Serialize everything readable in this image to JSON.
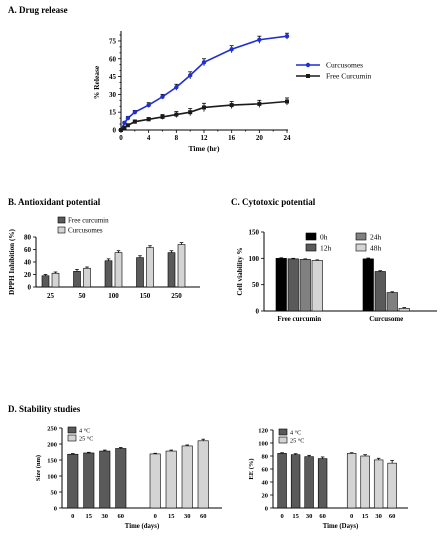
{
  "panels": {
    "a_title": "A. Drug release",
    "b_title": "B. Antioxidant potential",
    "c_title": "C. Cytotoxic potential",
    "d_title": "D. Stability studies"
  },
  "colors": {
    "curcusomes_line": "#1f2fd0",
    "free_line": "#1a1a1a",
    "bar_dark": "#5a5a5a",
    "bar_light": "#d4d4d4",
    "bar_black": "#000000",
    "bar_mid": "#808080"
  },
  "chart_data": [
    {
      "id": "A",
      "type": "line",
      "xlabel": "Time (hr)",
      "ylabel": "% Release",
      "xlim": [
        0,
        24
      ],
      "ylim": [
        0,
        80
      ],
      "xticks": [
        "0",
        "2",
        "4",
        "6",
        "8",
        "10",
        "12",
        "14",
        "16",
        "18",
        "20",
        "22",
        "24"
      ],
      "xticks_val": [
        0,
        2,
        4,
        6,
        8,
        10,
        12,
        14,
        16,
        18,
        20,
        22,
        24
      ],
      "xticks_show": [
        0,
        4,
        8,
        12,
        16,
        20,
        24
      ],
      "yticks": [
        "0",
        "5",
        "10",
        "15",
        "20",
        "25",
        "30",
        "35",
        "40",
        "45",
        "50",
        "55",
        "60",
        "65",
        "70",
        "75",
        "80"
      ],
      "yticks_val": [
        0,
        5,
        10,
        15,
        20,
        25,
        30,
        35,
        40,
        45,
        50,
        55,
        60,
        65,
        70,
        75,
        80
      ],
      "yticks_show": [
        0,
        15,
        30,
        45,
        60,
        75
      ],
      "series": [
        {
          "name": "Curcusomes",
          "x": [
            0,
            0.5,
            1,
            2,
            4,
            6,
            8,
            10,
            12,
            16,
            20,
            24
          ],
          "y": [
            0,
            6,
            10,
            15,
            21,
            28,
            36,
            46,
            57,
            68,
            76,
            79
          ],
          "err": [
            0,
            1,
            1.5,
            1.5,
            2,
            2,
            2.5,
            3,
            3,
            3,
            3,
            2.5
          ]
        },
        {
          "name": "Free Curcumin",
          "x": [
            0,
            0.5,
            1,
            2,
            4,
            6,
            8,
            10,
            12,
            16,
            20,
            24
          ],
          "y": [
            0,
            2,
            4,
            7,
            9,
            11,
            13,
            15,
            19,
            21,
            22,
            24
          ],
          "err": [
            0,
            1,
            1,
            1.5,
            1.5,
            2,
            2.5,
            3,
            3.5,
            3,
            3,
            3
          ]
        }
      ]
    },
    {
      "id": "B",
      "type": "bar",
      "ylabel": "DPPH Inhibition (%)",
      "ylim": [
        0,
        80
      ],
      "yticks": [
        "0",
        "20",
        "40",
        "60",
        "80"
      ],
      "categories": [
        "25",
        "50",
        "100",
        "150",
        "250"
      ],
      "series": [
        {
          "name": "Free curcumin",
          "values": [
            18,
            25,
            42,
            47,
            55
          ],
          "err": [
            2,
            3,
            3,
            3,
            3
          ]
        },
        {
          "name": "Curcusomes",
          "values": [
            22,
            30,
            55,
            63,
            68
          ],
          "err": [
            2,
            2,
            3,
            3,
            3
          ]
        }
      ]
    },
    {
      "id": "C",
      "type": "bar",
      "ylabel": "Cell viability %",
      "ylim": [
        0,
        150
      ],
      "yticks": [
        "0",
        "50",
        "100",
        "150"
      ],
      "categories": [
        "Free curcumin",
        "Curcusome"
      ],
      "series": [
        {
          "name": "0h",
          "values": [
            100,
            99
          ],
          "err": [
            1,
            1.5
          ]
        },
        {
          "name": "12h",
          "values": [
            99,
            75
          ],
          "err": [
            1,
            1.5
          ]
        },
        {
          "name": "24h",
          "values": [
            98,
            35
          ],
          "err": [
            1,
            1.5
          ]
        },
        {
          "name": "48h",
          "values": [
            96,
            5
          ],
          "err": [
            1,
            1.5
          ]
        }
      ]
    },
    {
      "id": "D1",
      "type": "bar",
      "xlabel": "Time (days)",
      "ylabel": "Size (nm)",
      "ylim": [
        0,
        250
      ],
      "yticks": [
        "0",
        "50",
        "100",
        "150",
        "200",
        "250"
      ],
      "categories": [
        "0",
        "15",
        "30",
        "60"
      ],
      "series": [
        {
          "name": "4 °C",
          "values": [
            168,
            172,
            178,
            186
          ],
          "err": [
            2,
            2,
            3,
            3
          ]
        },
        {
          "name": "25 °C",
          "values": [
            169,
            178,
            194,
            210
          ],
          "err": [
            2,
            3,
            3,
            5
          ]
        }
      ]
    },
    {
      "id": "D2",
      "type": "bar",
      "xlabel": "Time (Days)",
      "ylabel": "EE (%)",
      "ylim": [
        0,
        120
      ],
      "yticks": [
        "0",
        "20",
        "40",
        "60",
        "80",
        "100",
        "120"
      ],
      "categories": [
        "0",
        "15",
        "30",
        "60"
      ],
      "series": [
        {
          "name": "4 °C",
          "values": [
            84,
            82,
            79,
            76
          ],
          "err": [
            1,
            1.5,
            2,
            2.5
          ]
        },
        {
          "name": "25 °C",
          "values": [
            84,
            80,
            74,
            69
          ],
          "err": [
            1,
            2,
            2.5,
            4
          ]
        }
      ]
    }
  ]
}
